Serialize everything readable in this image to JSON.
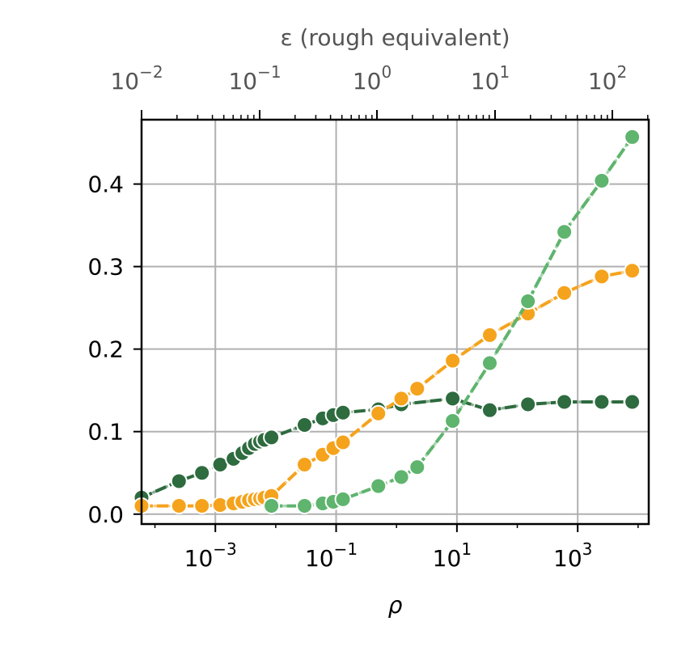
{
  "chart_data": {
    "type": "line",
    "xlabel": "ρ",
    "x_scale": "log",
    "xlim": [
      6e-05,
      15000
    ],
    "ylim": [
      -0.012,
      0.478
    ],
    "grid": true,
    "x_tick_values": [
      0.001,
      0.1,
      10,
      1000
    ],
    "x_tick_labels": [
      {
        "base": "10",
        "exp": "−3"
      },
      {
        "base": "10",
        "exp": "−1"
      },
      {
        "base": "10",
        "exp": "1"
      },
      {
        "base": "10",
        "exp": "3"
      }
    ],
    "y_ticks": [
      0.0,
      0.1,
      0.2,
      0.3,
      0.4
    ],
    "y_tick_labels": [
      "0.0",
      "0.1",
      "0.2",
      "0.3",
      "0.4"
    ],
    "top_axis": {
      "label": "ε (rough equivalent)",
      "scale": "log",
      "tick_rho": [
        6.5e-05,
        0.00094,
        0.0137,
        0.2,
        2.9,
        42,
        620
      ],
      "major_rho": [
        6.5e-05,
        0.0137,
        2.9,
        620
      ],
      "major_eps": [
        0.01,
        0.1,
        1,
        10,
        100
      ],
      "major_positions_rho": [
        6e-05,
        0.0008,
        0.011,
        0.2,
        3.2
      ],
      "labels": [
        {
          "base": "10",
          "exp": "−2"
        },
        {
          "base": "10",
          "exp": "−1"
        },
        {
          "base": "10",
          "exp": "0"
        },
        {
          "base": "10",
          "exp": "1"
        },
        {
          "base": "10",
          "exp": "2"
        }
      ],
      "label_rho": [
        6e-05,
        0.0009,
        0.012,
        0.22,
        3.6
      ],
      "tick_span_rho": [
        6e-05,
        15000
      ]
    },
    "series": [
      {
        "color": "#2e6b3f",
        "x": [
          6e-05,
          0.00025,
          0.0006,
          0.0012,
          0.002,
          0.0028,
          0.0036,
          0.0045,
          0.0055,
          0.0065,
          0.0085,
          0.03,
          0.06,
          0.09,
          0.13,
          0.5,
          1.2,
          8.5,
          35,
          150,
          600,
          2500,
          8000
        ],
        "y": [
          0.02,
          0.04,
          0.05,
          0.06,
          0.067,
          0.074,
          0.08,
          0.085,
          0.088,
          0.09,
          0.093,
          0.108,
          0.116,
          0.12,
          0.123,
          0.127,
          0.133,
          0.14,
          0.126,
          0.133,
          0.136,
          0.136,
          0.136
        ]
      },
      {
        "color": "#f5a31c",
        "x": [
          6e-05,
          0.00025,
          0.0006,
          0.0012,
          0.002,
          0.0028,
          0.0036,
          0.0045,
          0.0055,
          0.0065,
          0.0085,
          0.03,
          0.06,
          0.09,
          0.13,
          0.5,
          1.2,
          2.2,
          8.5,
          35,
          150,
          600,
          2500,
          8000
        ],
        "y": [
          0.01,
          0.01,
          0.01,
          0.011,
          0.013,
          0.015,
          0.017,
          0.018,
          0.019,
          0.02,
          0.022,
          0.06,
          0.072,
          0.08,
          0.087,
          0.122,
          0.14,
          0.152,
          0.186,
          0.217,
          0.243,
          0.268,
          0.288,
          0.295
        ]
      },
      {
        "color": "#5fb46e",
        "x": [
          0.0085,
          0.03,
          0.06,
          0.09,
          0.13,
          0.5,
          1.2,
          2.2,
          8.5,
          35,
          150,
          600,
          2500,
          8000
        ],
        "y": [
          0.01,
          0.01,
          0.013,
          0.015,
          0.018,
          0.034,
          0.045,
          0.057,
          0.113,
          0.183,
          0.258,
          0.342,
          0.404,
          0.457
        ]
      }
    ]
  }
}
